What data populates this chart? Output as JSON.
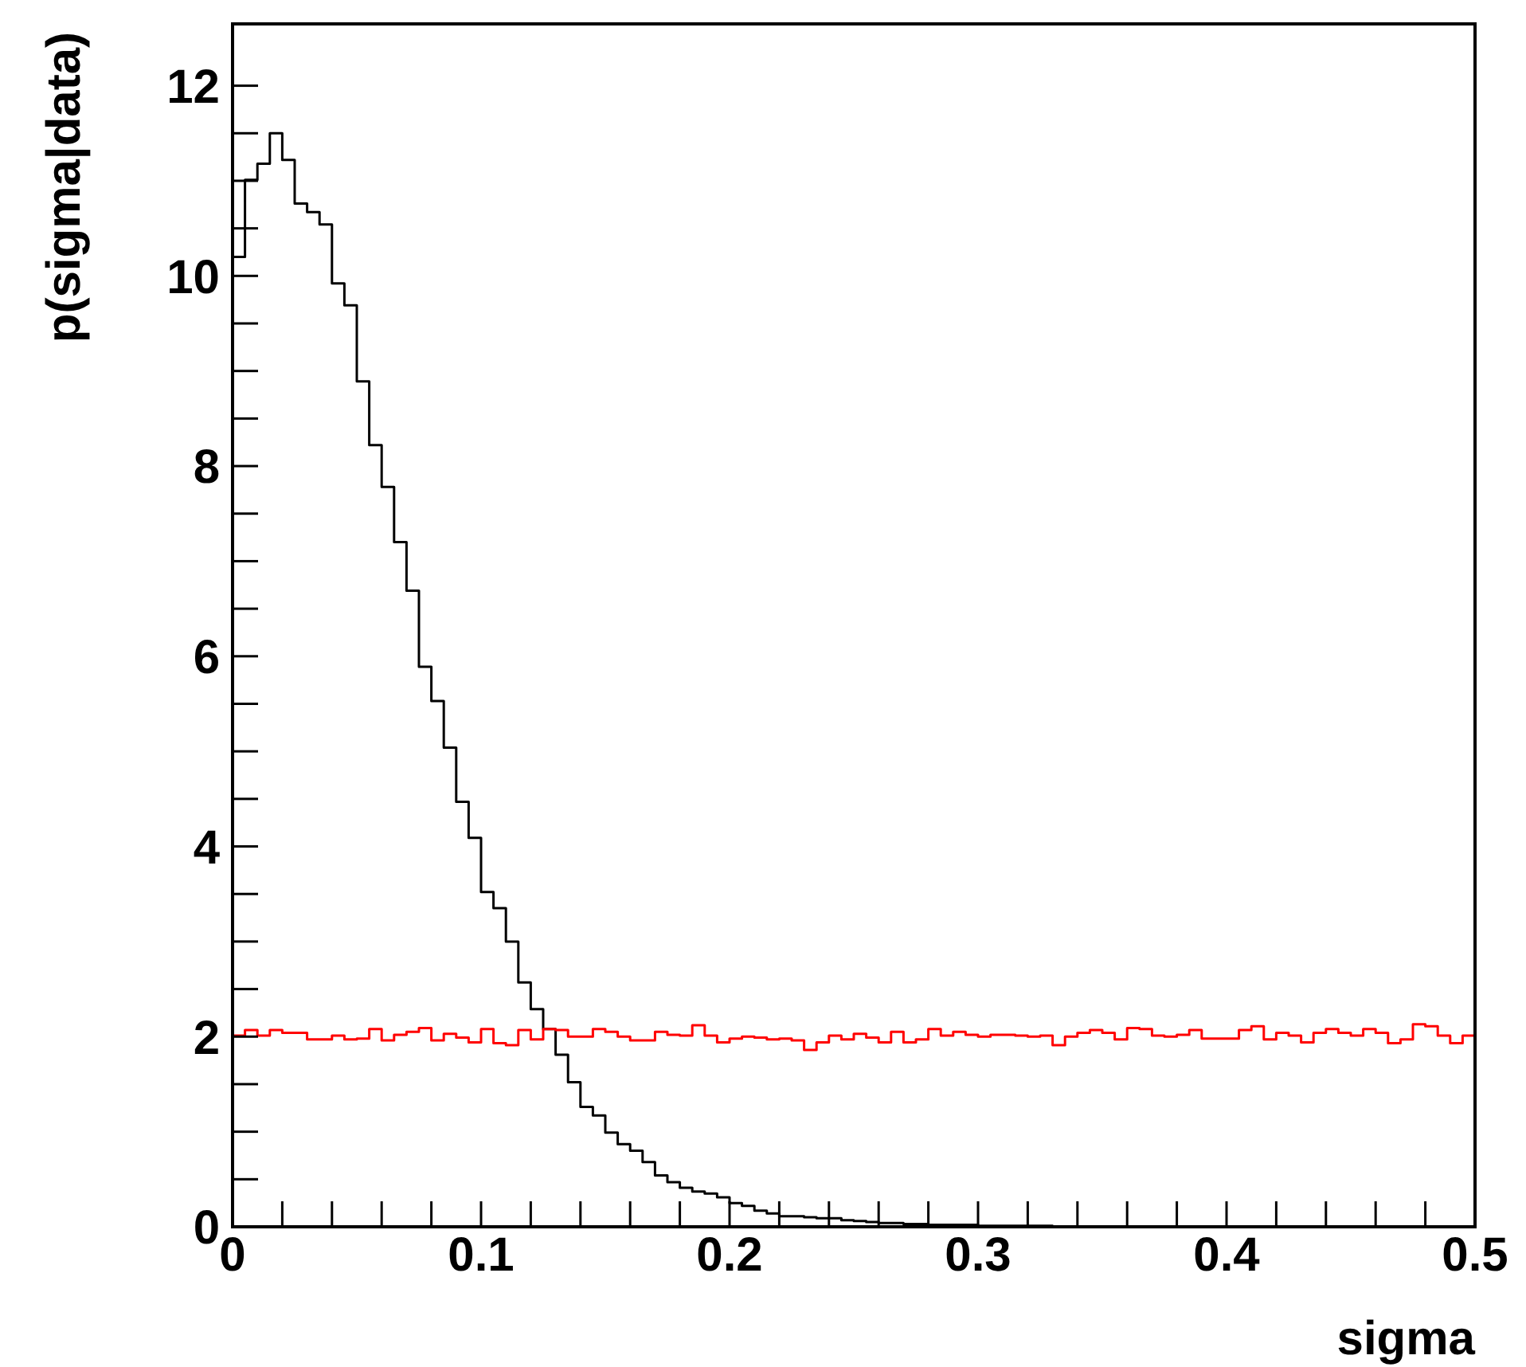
{
  "chart_data": {
    "type": "histogram",
    "xlabel": "sigma",
    "ylabel": "p(sigma|data)",
    "bins": [
      0,
      0.005,
      0.01,
      0.015,
      0.02,
      0.025,
      0.03,
      0.035,
      0.04,
      0.045,
      0.05,
      0.055,
      0.06,
      0.065,
      0.07,
      0.075,
      0.08,
      0.085,
      0.09,
      0.095,
      0.1,
      0.105,
      0.11,
      0.115,
      0.12,
      0.125,
      0.13,
      0.135,
      0.14,
      0.145,
      0.15,
      0.155,
      0.16,
      0.165,
      0.17,
      0.175,
      0.18,
      0.185,
      0.19,
      0.195,
      0.2,
      0.205,
      0.21,
      0.215,
      0.22,
      0.225,
      0.23,
      0.235,
      0.24,
      0.245,
      0.25,
      0.255,
      0.26,
      0.265,
      0.27,
      0.275,
      0.28,
      0.285,
      0.29,
      0.295,
      0.3,
      0.305,
      0.31,
      0.315,
      0.32,
      0.325,
      0.33,
      0.335,
      0.34,
      0.345,
      0.35,
      0.355,
      0.36,
      0.365,
      0.37,
      0.375,
      0.38,
      0.385,
      0.39,
      0.395,
      0.4,
      0.405,
      0.41,
      0.415,
      0.42,
      0.425,
      0.43,
      0.435,
      0.44,
      0.445,
      0.45,
      0.455,
      0.46,
      0.465,
      0.47,
      0.475,
      0.48,
      0.485,
      0.49,
      0.495,
      0.5
    ],
    "series": [
      {
        "color": "#000000",
        "values": [
          10.2,
          11.01,
          11.18,
          11.5,
          11.22,
          10.76,
          10.67,
          10.54,
          9.92,
          9.69,
          8.89,
          8.22,
          7.78,
          7.2,
          6.69,
          5.89,
          5.53,
          5.04,
          4.47,
          4.09,
          3.52,
          3.35,
          3.0,
          2.57,
          2.29,
          2.08,
          1.81,
          1.52,
          1.26,
          1.17,
          0.99,
          0.87,
          0.8,
          0.68,
          0.54,
          0.47,
          0.41,
          0.37,
          0.35,
          0.31,
          0.25,
          0.22,
          0.17,
          0.14,
          0.11,
          0.11,
          0.1,
          0.09,
          0.09,
          0.07,
          0.06,
          0.05,
          0.04,
          0.04,
          0.03,
          0.03,
          0.02,
          0.02,
          0.02,
          0.02,
          0.01,
          0.01,
          0.01,
          0.01,
          0.01,
          0.01,
          0,
          0,
          0,
          0,
          0,
          0,
          0,
          0,
          0,
          0,
          0,
          0,
          0,
          0,
          0,
          0,
          0,
          0,
          0,
          0,
          0,
          0,
          0,
          0,
          0,
          0,
          0,
          0,
          0,
          0,
          0,
          0,
          0,
          0
        ]
      },
      {
        "color": "#ff0000",
        "values": [
          2.01,
          2.07,
          2.01,
          2.07,
          2.04,
          2.04,
          1.97,
          1.97,
          2.01,
          1.97,
          1.98,
          2.08,
          1.96,
          2.02,
          2.05,
          2.09,
          1.96,
          2.03,
          1.99,
          1.94,
          2.08,
          1.93,
          1.91,
          2.07,
          1.97,
          2.08,
          2.07,
          2.0,
          2.0,
          2.08,
          2.05,
          2.0,
          1.96,
          1.96,
          2.05,
          2.02,
          2.01,
          2.12,
          2.01,
          1.94,
          1.98,
          2.0,
          1.99,
          1.97,
          1.98,
          1.96,
          1.86,
          1.94,
          2.01,
          1.97,
          2.03,
          1.99,
          1.94,
          2.05,
          1.94,
          1.97,
          2.08,
          2.01,
          2.05,
          2.02,
          2.0,
          2.02,
          2.02,
          2.01,
          2.0,
          2.01,
          1.91,
          2.0,
          2.04,
          2.07,
          2.04,
          1.97,
          2.09,
          2.08,
          2.01,
          2.0,
          2.02,
          2.07,
          1.98,
          1.98,
          1.98,
          2.07,
          2.11,
          1.97,
          2.04,
          2.01,
          1.94,
          2.04,
          2.08,
          2.04,
          2.01,
          2.08,
          2.04,
          1.93,
          1.97,
          2.13,
          2.11,
          2.01,
          1.93,
          2.01
        ]
      }
    ],
    "xlim": [
      0,
      0.5
    ],
    "xticks": [
      0,
      {
        "value": 0.02,
        "label": null
      },
      {
        "value": 0.04,
        "label": null
      },
      {
        "value": 0.06,
        "label": null
      },
      {
        "value": 0.08,
        "label": null
      },
      0.1,
      {
        "value": 0.12,
        "label": null
      },
      {
        "value": 0.14,
        "label": null
      },
      {
        "value": 0.16,
        "label": null
      },
      {
        "value": 0.18,
        "label": null
      },
      0.2,
      {
        "value": 0.22,
        "label": null
      },
      {
        "value": 0.24,
        "label": null
      },
      {
        "value": 0.26,
        "label": null
      },
      {
        "value": 0.28,
        "label": null
      },
      0.3,
      {
        "value": 0.32,
        "label": null
      },
      {
        "value": 0.34,
        "label": null
      },
      {
        "value": 0.36,
        "label": null
      },
      {
        "value": 0.38,
        "label": null
      },
      0.4,
      {
        "value": 0.42,
        "label": null
      },
      {
        "value": 0.44,
        "label": null
      },
      {
        "value": 0.46,
        "label": null
      },
      {
        "value": 0.48,
        "label": null
      },
      0.5
    ],
    "ylim": [
      0,
      12.65
    ],
    "yticks": [
      0,
      {
        "value": 0.5,
        "label": null
      },
      {
        "value": 1,
        "label": null
      },
      {
        "value": 1.5,
        "label": null
      },
      2,
      {
        "value": 2.5,
        "label": null
      },
      {
        "value": 3,
        "label": null
      },
      {
        "value": 3.5,
        "label": null
      },
      4,
      {
        "value": 4.5,
        "label": null
      },
      {
        "value": 5,
        "label": null
      },
      {
        "value": 5.5,
        "label": null
      },
      6,
      {
        "value": 6.5,
        "label": null
      },
      {
        "value": 7,
        "label": null
      },
      {
        "value": 7.5,
        "label": null
      },
      8,
      {
        "value": 8.5,
        "label": null
      },
      {
        "value": 9,
        "label": null
      },
      {
        "value": 9.5,
        "label": null
      },
      10,
      {
        "value": 10.5,
        "label": null
      },
      {
        "value": 11,
        "label": null
      },
      {
        "value": 11.5,
        "label": null
      },
      12
    ],
    "grid": false,
    "legend": false
  }
}
